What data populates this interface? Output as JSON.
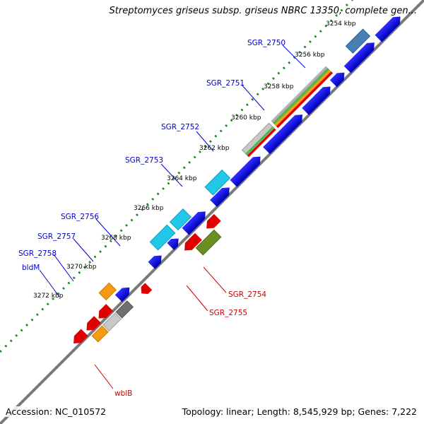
{
  "title": "Streptomyces griseus subsp. griseus NBRC 13350, complete gen...",
  "footer": {
    "accession": "Accession: NC_010572",
    "summary": "Topology: linear; Length: 8,545,929 bp; Genes: 7,222"
  },
  "colors": {
    "forward_label": "#0000cc",
    "reverse_label": "#cc0000",
    "backbone": "#7a7a7a",
    "ticks": "#1a8a1a",
    "blue": "#0000e0",
    "cyan": "#22c8e8",
    "red": "#e00000",
    "orange": "#f59a12",
    "olive": "#6b8e23",
    "gray": "#707070",
    "silver": "#c8c8c8",
    "steel": "#4a7fb5"
  },
  "ticks": [
    {
      "label": "3254 kbp"
    },
    {
      "label": "3256 kbp"
    },
    {
      "label": "3258 kbp"
    },
    {
      "label": "3260 kbp"
    },
    {
      "label": "3262 kbp"
    },
    {
      "label": "3264 kbp"
    },
    {
      "label": "3266 kbp"
    },
    {
      "label": "3268 kbp"
    },
    {
      "label": "3270 kbp"
    },
    {
      "label": "3272 kbp"
    }
  ],
  "gene_labels": [
    {
      "name": "SGR_2750",
      "strand": "forward"
    },
    {
      "name": "SGR_2751",
      "strand": "forward"
    },
    {
      "name": "SGR_2752",
      "strand": "forward"
    },
    {
      "name": "SGR_2753",
      "strand": "forward"
    },
    {
      "name": "SGR_2756",
      "strand": "forward"
    },
    {
      "name": "SGR_2757",
      "strand": "forward"
    },
    {
      "name": "SGR_2758",
      "strand": "forward"
    },
    {
      "name": "bldM",
      "strand": "forward"
    },
    {
      "name": "SGR_2754",
      "strand": "reverse"
    },
    {
      "name": "SGR_2755",
      "strand": "reverse"
    },
    {
      "name": "wblB",
      "strand": "reverse"
    }
  ]
}
